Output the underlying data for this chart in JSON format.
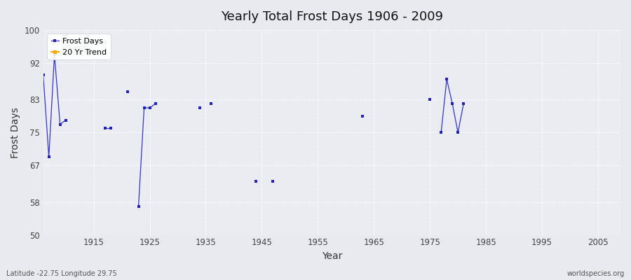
{
  "title": "Yearly Total Frost Days 1906 - 2009",
  "xlabel": "Year",
  "ylabel": "Frost Days",
  "xlim": [
    1906,
    2009
  ],
  "ylim": [
    50,
    100
  ],
  "yticks": [
    50,
    58,
    67,
    75,
    83,
    92,
    100
  ],
  "xticks": [
    1915,
    1925,
    1935,
    1945,
    1955,
    1965,
    1975,
    1985,
    1995,
    2005
  ],
  "bg_color": "#e8eaef",
  "plot_bg_color": "#eaecf2",
  "line_color": "#3333cc",
  "marker_color": "#2222bb",
  "footer_left": "Latitude -22.75 Longitude 29.75",
  "footer_right": "worldspecies.org",
  "legend_entries": [
    "Frost Days",
    "20 Yr Trend"
  ],
  "legend_colors": [
    "#2222dd",
    "#ffaa00"
  ],
  "frost_data": [
    [
      1906,
      89
    ],
    [
      1907,
      69
    ],
    [
      1908,
      94
    ],
    [
      1909,
      77
    ],
    [
      1910,
      78
    ],
    [
      1917,
      76
    ],
    [
      1918,
      76
    ],
    [
      1921,
      85
    ],
    [
      1923,
      57
    ],
    [
      1924,
      81
    ],
    [
      1925,
      81
    ],
    [
      1926,
      82
    ],
    [
      1934,
      81
    ],
    [
      1936,
      82
    ],
    [
      1944,
      63
    ],
    [
      1947,
      63
    ],
    [
      1963,
      79
    ],
    [
      1975,
      83
    ],
    [
      1977,
      75
    ],
    [
      1978,
      88
    ],
    [
      1979,
      82
    ],
    [
      1980,
      75
    ],
    [
      1981,
      82
    ]
  ],
  "connect_threshold": 1
}
